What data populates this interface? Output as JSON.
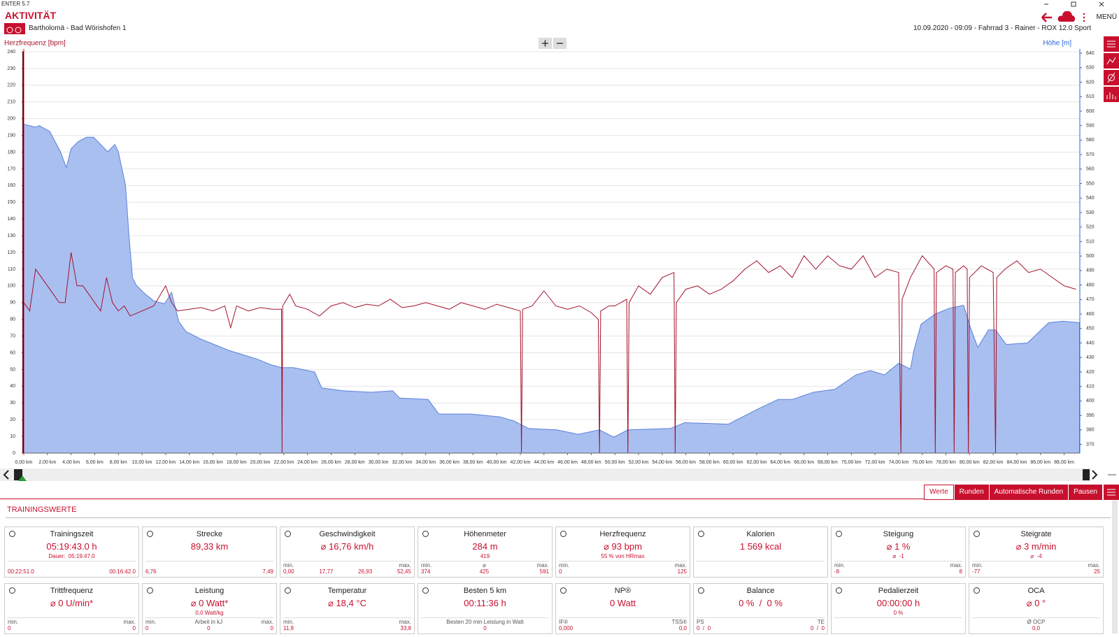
{
  "title_bar": "ENTER 5.7",
  "header": {
    "title": "AKTIVITÄT",
    "route": "Bartholomä - Bad Wörishofen 1",
    "info": "10.09.2020 - 09:09 - Fahrrad 3 - Rainer - ROX 12.0 Sport",
    "menu": "MENÜ"
  },
  "chart_data": {
    "type": "line",
    "series": [
      {
        "name": "Herzfrequenz [bpm]",
        "color": "#a3122b",
        "x": [
          0,
          0.5,
          1,
          1.5,
          2,
          2.5,
          3,
          3.5,
          4,
          4.5,
          5,
          5.5,
          6,
          6.5,
          7,
          7.5,
          8,
          8.5,
          9,
          10,
          11,
          12,
          12.5,
          13,
          14,
          15,
          16,
          17,
          17.5,
          18,
          19,
          20,
          21,
          21.8,
          21.85,
          21.9,
          22.5,
          23,
          24,
          25,
          26,
          27,
          28,
          29,
          30,
          31,
          32,
          33,
          34,
          35,
          36,
          37,
          38,
          39,
          40,
          41,
          42,
          42.1,
          42.2,
          43,
          44,
          45,
          46,
          47,
          48,
          48.6,
          48.7,
          48.8,
          49.5,
          50,
          51,
          51.1,
          51.2,
          52,
          53,
          54,
          55,
          55.1,
          55.2,
          56,
          57,
          58,
          59,
          60,
          61,
          62,
          63,
          64,
          65,
          66,
          67,
          68,
          69,
          70,
          71,
          72,
          73,
          74,
          74.2,
          74.3,
          75,
          76,
          77,
          77.1,
          77.2,
          78,
          78.6,
          78.7,
          78.8,
          79.5,
          79.8,
          79.9,
          80,
          81,
          82,
          82.2,
          82.3,
          83,
          84,
          85,
          86,
          87,
          88,
          89
        ],
        "values": [
          90,
          85,
          110,
          105,
          100,
          95,
          90,
          90,
          120,
          100,
          100,
          95,
          90,
          85,
          105,
          90,
          85,
          88,
          82,
          85,
          88,
          100,
          90,
          85,
          86,
          87,
          85,
          88,
          75,
          88,
          85,
          87,
          86,
          86,
          0,
          88,
          95,
          88,
          86,
          82,
          88,
          90,
          87,
          89,
          88,
          92,
          87,
          88,
          90,
          88,
          86,
          90,
          88,
          86,
          89,
          87,
          85,
          0,
          86,
          88,
          97,
          88,
          86,
          88,
          84,
          80,
          0,
          85,
          88,
          88,
          92,
          0,
          90,
          100,
          95,
          105,
          108,
          0,
          90,
          98,
          100,
          95,
          98,
          103,
          110,
          115,
          108,
          112,
          105,
          118,
          110,
          118,
          112,
          110,
          118,
          105,
          110,
          108,
          0,
          92,
          105,
          118,
          110,
          0,
          108,
          112,
          110,
          0,
          108,
          112,
          110,
          0,
          105,
          112,
          108,
          0,
          105,
          110,
          115,
          108,
          110,
          105,
          100,
          98
        ]
      },
      {
        "name": "Höhe [m]",
        "color": "#2866d8",
        "axis": "y2",
        "x": [
          0,
          1,
          1.3,
          2.2,
          3.1,
          3.6,
          4,
          4.6,
          5.3,
          5.9,
          6.5,
          7.1,
          7.7,
          8,
          8.6,
          8.9,
          9.2,
          9.5,
          10.1,
          11,
          11.9,
          12.5,
          13.1,
          13.7,
          14.9,
          16.1,
          17.3,
          18.5,
          19.7,
          20.9,
          21.8,
          22.8,
          24.6,
          25.2,
          27,
          29.4,
          31.2,
          31.8,
          34.2,
          35.1,
          37.8,
          40.3,
          41.5,
          42.7,
          45.1,
          46.9,
          48.7,
          49.9,
          51.1,
          54.7,
          55.9,
          59.6,
          60.8,
          62,
          63.8,
          65,
          66.8,
          68.6,
          70.4,
          71.6,
          72.8,
          74,
          75,
          75.3,
          75.9,
          77.1,
          78.3,
          79.5,
          80.1,
          80.7,
          81.6,
          82.2,
          83.1,
          84.9,
          86.7,
          87.9,
          89.3
        ],
        "values": [
          591,
          589,
          590,
          586,
          572,
          561,
          574,
          579,
          582,
          582,
          577,
          572,
          577,
          572,
          549,
          514,
          485,
          480,
          475,
          469,
          467,
          475,
          455,
          448,
          443,
          439,
          435,
          432,
          429,
          425,
          423,
          423,
          420,
          409,
          407,
          406,
          407,
          402,
          401,
          391,
          391,
          389,
          386,
          381,
          380,
          377,
          380,
          375,
          380,
          381,
          385,
          384,
          389,
          394,
          401,
          401,
          406,
          408,
          418,
          421,
          418,
          426,
          422,
          435,
          453,
          460,
          464,
          466,
          450,
          437,
          449,
          449,
          439,
          440,
          454,
          455,
          454
        ]
      }
    ],
    "xlim": [
      0,
      89.33
    ],
    "xticks": [
      {
        "value": 0,
        "label": "0,00 km"
      },
      {
        "value": 2,
        "label": "2,00 km"
      },
      {
        "value": 4,
        "label": "4,00 km"
      },
      {
        "value": 6,
        "label": "6,00 km"
      },
      {
        "value": 8,
        "label": "8,00 km"
      },
      {
        "value": 10,
        "label": "10,00 km"
      },
      {
        "value": 12,
        "label": "12,00 km"
      },
      {
        "value": 14,
        "label": "14,00 km"
      },
      {
        "value": 16,
        "label": "16,00 km"
      },
      {
        "value": 18,
        "label": "18,00 km"
      },
      {
        "value": 20,
        "label": "20,00 km"
      },
      {
        "value": 22,
        "label": "22,00 km"
      },
      {
        "value": 24,
        "label": "24,00 km"
      },
      {
        "value": 26,
        "label": "26,00 km"
      },
      {
        "value": 28,
        "label": "28,00 km"
      },
      {
        "value": 30,
        "label": "30,00 km"
      },
      {
        "value": 32,
        "label": "32,00 km"
      },
      {
        "value": 34,
        "label": "34,00 km"
      },
      {
        "value": 36,
        "label": "36,00 km"
      },
      {
        "value": 38,
        "label": "38,00 km"
      },
      {
        "value": 40,
        "label": "40,00 km"
      },
      {
        "value": 42,
        "label": "42,00 km"
      },
      {
        "value": 44,
        "label": "44,00 km"
      },
      {
        "value": 46,
        "label": "46,00 km"
      },
      {
        "value": 48,
        "label": "48,00 km"
      },
      {
        "value": 50,
        "label": "50,00 km"
      },
      {
        "value": 52,
        "label": "52,00 km"
      },
      {
        "value": 54,
        "label": "54,00 km"
      },
      {
        "value": 56,
        "label": "56,00 km"
      },
      {
        "value": 58,
        "label": "58,00 km"
      },
      {
        "value": 60,
        "label": "60,00 km"
      },
      {
        "value": 62,
        "label": "62,00 km"
      },
      {
        "value": 64,
        "label": "64,00 km"
      },
      {
        "value": 66,
        "label": "66,00 km"
      },
      {
        "value": 68,
        "label": "68,00 km"
      },
      {
        "value": 70,
        "label": "70,00 km"
      },
      {
        "value": 72,
        "label": "72,00 km"
      },
      {
        "value": 74,
        "label": "74,00 km"
      },
      {
        "value": 76,
        "label": "76,00 km"
      },
      {
        "value": 78,
        "label": "78,00 km"
      },
      {
        "value": 80,
        "label": "80,00 km"
      },
      {
        "value": 82,
        "label": "82,00 km"
      },
      {
        "value": 84,
        "label": "84,00 km"
      },
      {
        "value": 86,
        "label": "86,00 km"
      },
      {
        "value": 88,
        "label": "88,00 km"
      }
    ],
    "ylim": [
      0,
      240
    ],
    "yticks": [
      0,
      10,
      20,
      30,
      40,
      50,
      60,
      70,
      80,
      90,
      100,
      110,
      120,
      130,
      140,
      150,
      160,
      170,
      180,
      190,
      200,
      210,
      220,
      230,
      240
    ],
    "y2lim": [
      364,
      641
    ],
    "y2ticks": [
      370,
      380,
      390,
      400,
      410,
      420,
      430,
      440,
      450,
      460,
      470,
      480,
      490,
      500,
      510,
      520,
      530,
      540,
      550,
      560,
      570,
      580,
      590,
      600,
      610,
      620,
      630,
      640
    ],
    "grid": true
  },
  "tabs": [
    "Werte",
    "Runden",
    "Automatische Runden",
    "Pausen"
  ],
  "section_title": "TRAININGSWERTE",
  "cards": [
    {
      "title": "Trainingszeit",
      "value": "05:19:43.0 h",
      "sub": "Dauer:  05:19:47.0",
      "bottom": [
        {
          "value": "00:22:51.0"
        },
        {
          "value": "00:16:42.0"
        }
      ]
    },
    {
      "title": "Strecke",
      "value": "89,33 km",
      "bottom": [
        {
          "value": "6,76"
        },
        {
          "value": "7,49"
        }
      ]
    },
    {
      "title": "Geschwindigkeit",
      "value": "⌀ 16,76 km/h",
      "bottom": [
        {
          "label": "min.",
          "value": "0,00"
        },
        {
          "value": "17,77"
        },
        {
          "value": "26,93"
        },
        {
          "label": "max.",
          "value": "52,45"
        }
      ]
    },
    {
      "title": "Höhenmeter",
      "value": "284 m",
      "sub": "419",
      "bottom": [
        {
          "label": "min.",
          "value": "374"
        },
        {
          "label": "⌀",
          "value": "425"
        },
        {
          "label": "max.",
          "value": "591"
        }
      ]
    },
    {
      "title": "Herzfrequenz",
      "value": "⌀ 93 bpm",
      "sub": "55 % von HRmax",
      "bottom": [
        {
          "label": "min.",
          "value": "0"
        },
        {
          "label": "max.",
          "value": "125"
        }
      ]
    },
    {
      "title": "Kalorien",
      "value": "1 569 kcal"
    },
    {
      "title": "Steigung",
      "value": "⌀ 1 %",
      "sub": "⌀  -1",
      "bottom": [
        {
          "label": "min.",
          "value": "-8"
        },
        {
          "label": "max.",
          "value": "8"
        }
      ]
    },
    {
      "title": "Steigrate",
      "value": "⌀ 3 m/min",
      "sub": "⌀  -4",
      "bottom": [
        {
          "label": "min.",
          "value": "-77"
        },
        {
          "label": "max.",
          "value": "25"
        }
      ]
    },
    {
      "title": "Trittfrequenz",
      "value": "⌀ 0 U/min*",
      "bottom": [
        {
          "label": "min.",
          "value": "0"
        },
        {
          "label": "max.",
          "value": "0"
        }
      ]
    },
    {
      "title": "Leistung",
      "value": "⌀ 0 Watt*",
      "sub": "0,0 Watt/kg",
      "bottom": [
        {
          "label": "min.",
          "value": "0"
        },
        {
          "label": "Arbeit in kJ",
          "value": "0"
        },
        {
          "label": "max.",
          "value": "0"
        }
      ]
    },
    {
      "title": "Temperatur",
      "value": "⌀ 18,4 °C",
      "bottom": [
        {
          "label": "min.",
          "value": "11,9"
        },
        {
          "label": "max.",
          "value": "33,8"
        }
      ]
    },
    {
      "title": "Besten 5 km",
      "value": "00:11:36 h",
      "bottom": [
        {
          "label": "Besten 20 min Leistung in Watt",
          "value": "0"
        }
      ]
    },
    {
      "title": "NP®",
      "value": "0 Watt",
      "bottom": [
        {
          "label": "IF®",
          "value": "0,000"
        },
        {
          "label": "TSS®",
          "value": "0,0"
        }
      ]
    },
    {
      "title": "Balance",
      "value": "0 %  /  0 %",
      "bottom": [
        {
          "label": "PS",
          "value": "0  /  0"
        },
        {
          "label": "TE",
          "value": "0  /  0"
        }
      ]
    },
    {
      "title": "Pedalierzeit",
      "value": "00:00:00 h",
      "sub": "0 %"
    },
    {
      "title": "OCA",
      "value": "⌀ 0 °",
      "bottom": [
        {
          "label": "Ø OCP",
          "value": "0,0"
        }
      ]
    }
  ]
}
